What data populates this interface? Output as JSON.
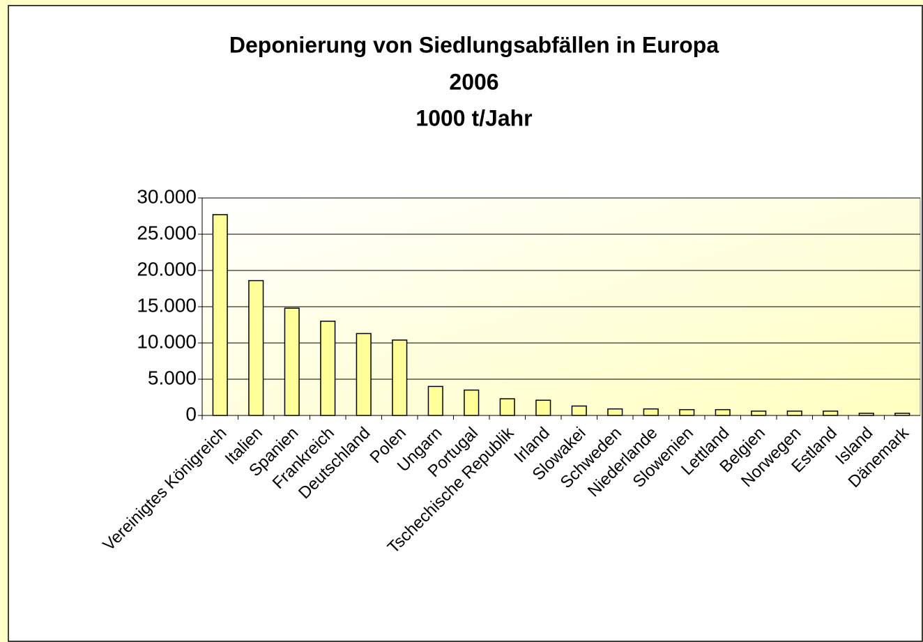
{
  "chart_data": {
    "type": "bar",
    "title": [
      "Deponierung von Siedlungsabfällen in Europa",
      "2006",
      "1000 t/Jahr"
    ],
    "categories": [
      "Vereinigtes Königreich",
      "Italien",
      "Spanien",
      "Frankreich",
      "Deutschland",
      "Polen",
      "Ungarn",
      "Portugal",
      "Tschechische Republik",
      "Irland",
      "Slowakei",
      "Schweden",
      "Niederlande",
      "Slowenien",
      "Lettland",
      "Belgien",
      "Norwegen",
      "Estland",
      "Island",
      "Dänemark"
    ],
    "values": [
      27700,
      18600,
      14800,
      13000,
      11300,
      10400,
      4000,
      3500,
      2300,
      2100,
      1300,
      900,
      900,
      800,
      800,
      600,
      600,
      600,
      300,
      300
    ],
    "color": "#ffff99",
    "ylim": [
      0,
      30000
    ],
    "yticks": [
      0,
      {
        "value": 5000,
        "label": "5.000"
      },
      {
        "value": 10000,
        "label": "10.000"
      },
      {
        "value": 15000,
        "label": "15.000"
      },
      {
        "value": 20000,
        "label": "20.000"
      },
      {
        "value": 25000,
        "label": "25.000"
      },
      {
        "value": 30000,
        "label": "30.000"
      }
    ],
    "grid": true
  }
}
